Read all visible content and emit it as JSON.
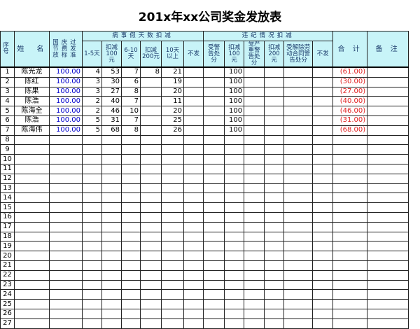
{
  "title": "201x年xx公司奖金发放表",
  "headers": {
    "no": "序号",
    "name": "姓　名",
    "holiday": "国庆过节费发放标准",
    "sick_group": "病事假天数扣减",
    "d1_5": "1-5天",
    "ded100": "扣减100元",
    "d6_10": "6-10天",
    "ded200": "扣减200元",
    "d10": "10天以上",
    "nopay": "不发",
    "disc_group": "违纪情况扣减",
    "warn": "受警告处分",
    "ded100b": "扣减100元",
    "serious": "受严重警告处分",
    "ded200b": "扣减200元",
    "dismiss": "受解除劳动合同警告处分",
    "nopay2": "不发",
    "total": "合 计",
    "remark": "备 注"
  },
  "rows": [
    {
      "no": "1",
      "name": "陈光龙",
      "std": "100.00",
      "d1": "4",
      "a100": "53",
      "d6": "7",
      "a200": "8",
      "d10": "21",
      "w100": "100",
      "total": "(61.00)"
    },
    {
      "no": "2",
      "name": "陈红",
      "std": "100.00",
      "d1": "3",
      "a100": "30",
      "d6": "6",
      "a200": "",
      "d10": "19",
      "w100": "100",
      "total": "(30.00)"
    },
    {
      "no": "3",
      "name": "陈果",
      "std": "100.00",
      "d1": "3",
      "a100": "27",
      "d6": "8",
      "a200": "",
      "d10": "20",
      "w100": "100",
      "total": "(27.00)"
    },
    {
      "no": "4",
      "name": "陈浩",
      "std": "100.00",
      "d1": "2",
      "a100": "40",
      "d6": "7",
      "a200": "",
      "d10": "11",
      "w100": "100",
      "total": "(40.00)"
    },
    {
      "no": "5",
      "name": "陈海全",
      "std": "100.00",
      "d1": "2",
      "a100": "46",
      "d6": "10",
      "a200": "",
      "d10": "20",
      "w100": "100",
      "total": "(46.00)"
    },
    {
      "no": "6",
      "name": "陈浩",
      "std": "100.00",
      "d1": "5",
      "a100": "31",
      "d6": "7",
      "a200": "",
      "d10": "25",
      "w100": "100",
      "total": "(31.00)"
    },
    {
      "no": "7",
      "name": "陈海伟",
      "std": "100.00",
      "d1": "5",
      "a100": "68",
      "d6": "8",
      "a200": "",
      "d10": "26",
      "w100": "100",
      "total": "(68.00)"
    }
  ],
  "empty_rows": [
    "8",
    "9",
    "10",
    "11",
    "12",
    "13",
    "14",
    "15",
    "16",
    "17",
    "18",
    "19",
    "20",
    "21",
    "22",
    "23",
    "24",
    "25",
    "26",
    "27"
  ]
}
